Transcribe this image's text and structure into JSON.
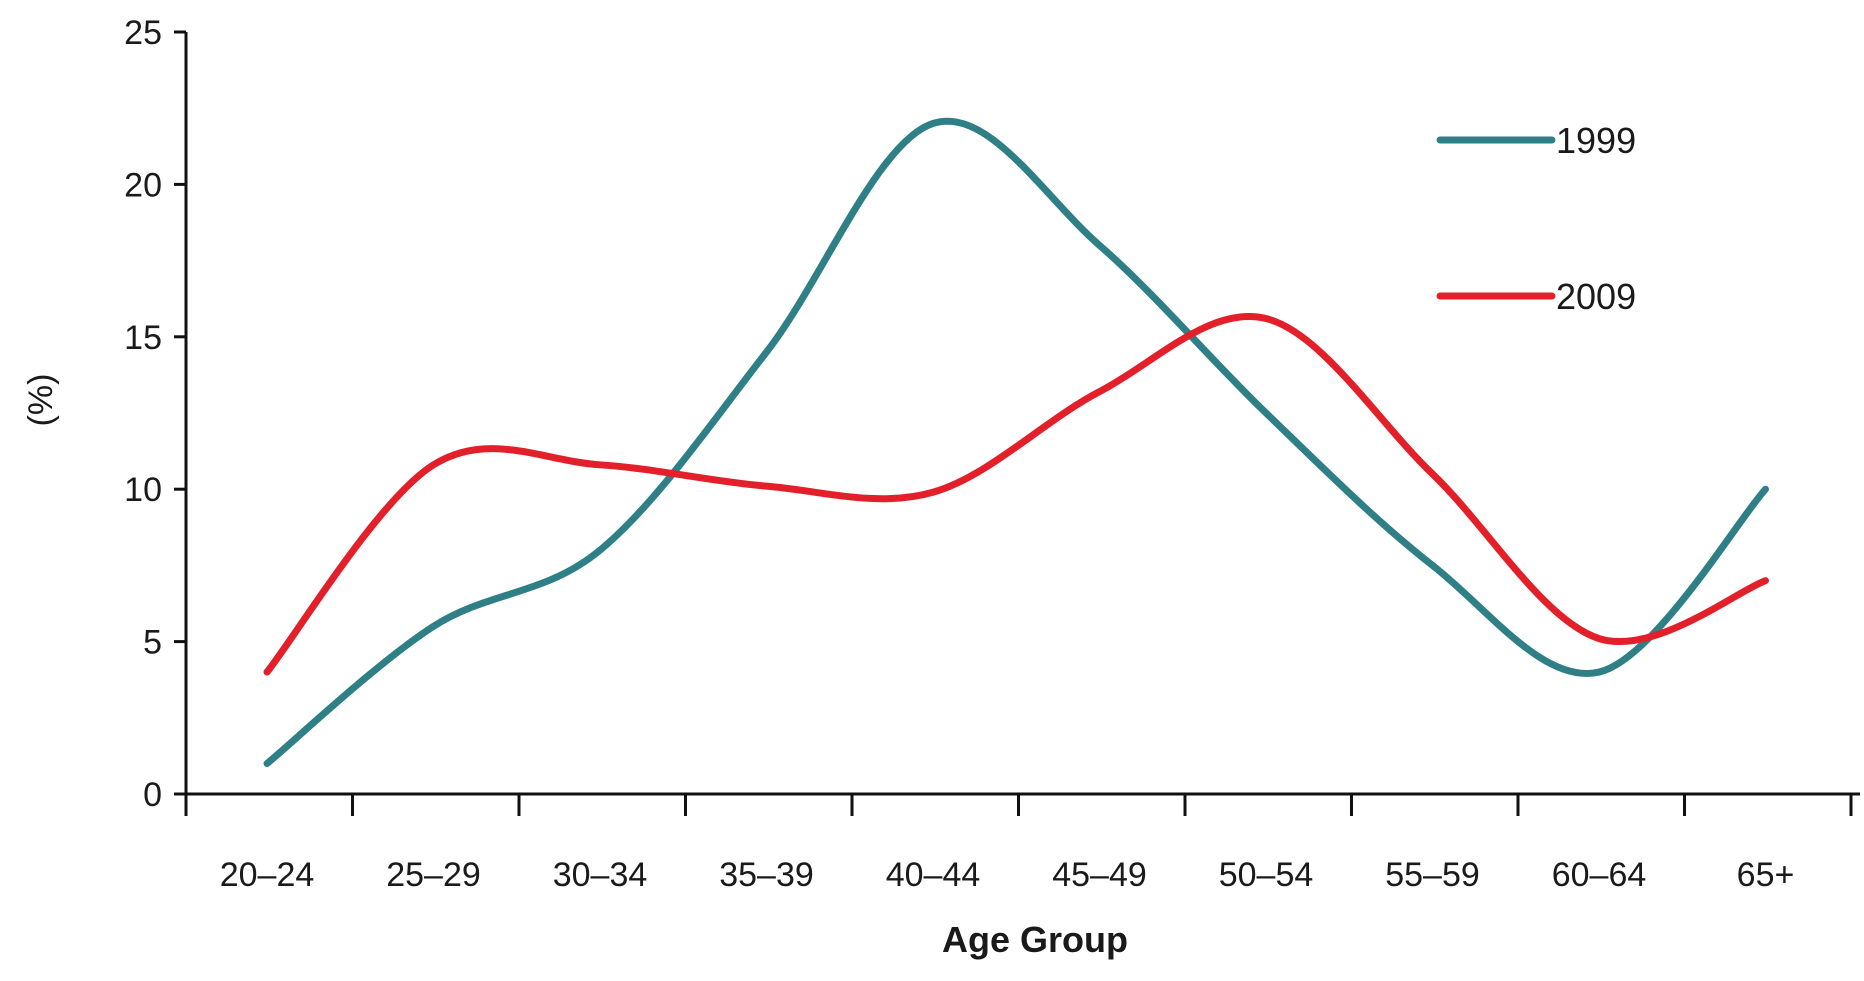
{
  "chart_data": {
    "type": "line",
    "title": "",
    "xlabel": "Age Group",
    "ylabel": "(%)",
    "categories": [
      "20–24",
      "25–29",
      "30–34",
      "35–39",
      "40–44",
      "45–49",
      "50–54",
      "55–59",
      "60–64",
      "65+"
    ],
    "series": [
      {
        "name": "1999",
        "color": "#2f7f86",
        "values": [
          1,
          5.5,
          8,
          14.5,
          22,
          18,
          12.5,
          7.5,
          4,
          10
        ]
      },
      {
        "name": "2009",
        "color": "#e3202a",
        "values": [
          4,
          10.8,
          10.8,
          10.1,
          9.9,
          13.2,
          15.6,
          10.5,
          5.1,
          7
        ]
      }
    ],
    "ylim": [
      0,
      25
    ],
    "yticks": [
      "0",
      "5",
      "10",
      "15",
      "20",
      "25"
    ],
    "grid": false,
    "legend_position": "top-right",
    "smooth": true
  }
}
